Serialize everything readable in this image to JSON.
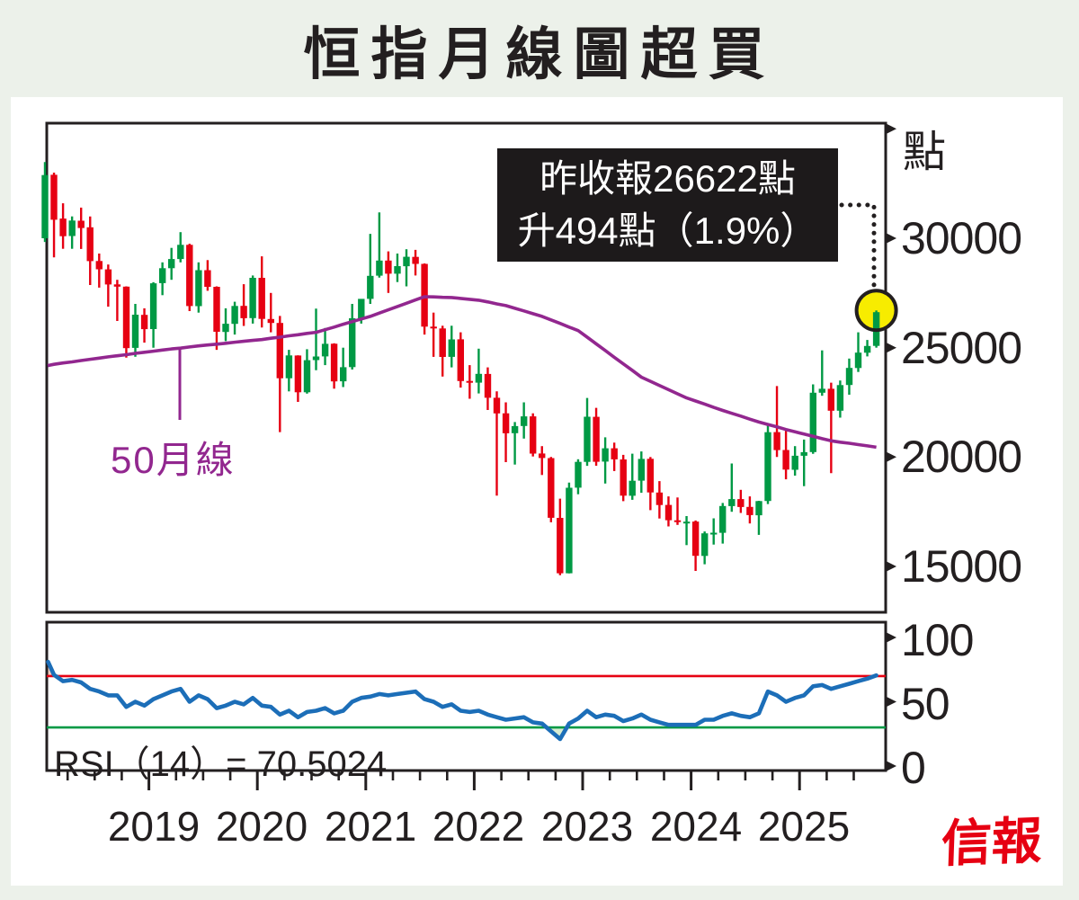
{
  "colors": {
    "background": "#ecf1ea",
    "ink": "#231f20",
    "up": "#009944",
    "down": "#e60012",
    "ma50": "#92278f",
    "rsi_line": "#1c6eb8",
    "overbought_line": "#e60012",
    "oversold_line": "#009944",
    "overbought_fill": "#f6cfc0",
    "oversold_fill": "#d9edd2",
    "highlight_circle": "#f7ec00",
    "logo_red": "#e60012",
    "note_bg": "#1d1a1b",
    "note_text": "#ffffff"
  },
  "brand": {
    "logo": "信報"
  },
  "chart_data": [
    {
      "type": "candlestick",
      "title": "恒指月線圖超買",
      "unit": "點",
      "ylim": [
        12900,
        35300
      ],
      "yticks": [
        15000,
        20000,
        25000,
        30000
      ],
      "x_years": [
        "2019",
        "2020",
        "2021",
        "2022",
        "2023",
        "2024",
        "2025"
      ],
      "highlight": {
        "month": "2025-09",
        "close": 26622,
        "change": 494,
        "change_pct": "1.9%",
        "note": [
          "昨收報26622點",
          "升494點（1.9%）"
        ]
      },
      "ma50": {
        "name": "50月線",
        "values": [
          24180,
          24240,
          24300,
          24350,
          24410,
          24470,
          24520,
          24580,
          24630,
          24680,
          24740,
          24790,
          24840,
          24890,
          24940,
          24980,
          25030,
          25080,
          25120,
          25160,
          25200,
          25250,
          25290,
          25330,
          25370,
          25430,
          25480,
          25540,
          25590,
          25650,
          25700,
          25820,
          25940,
          26070,
          26190,
          26310,
          26430,
          26580,
          26730,
          26880,
          27030,
          27180,
          27330,
          27320,
          27300,
          27290,
          27250,
          27210,
          27170,
          27090,
          27000,
          26920,
          26800,
          26680,
          26550,
          26430,
          26270,
          26110,
          25940,
          25780,
          25480,
          25170,
          24870,
          24560,
          24260,
          23960,
          23650,
          23460,
          23270,
          23080,
          22890,
          22700,
          22560,
          22420,
          22270,
          22130,
          22000,
          21870,
          21730,
          21600,
          21490,
          21380,
          21260,
          21150,
          21050,
          20950,
          20840,
          20740,
          20680,
          20630,
          20570,
          20510,
          20450
        ]
      },
      "candles": [
        [
          2018,
          1,
          30000,
          33484,
          29830,
          32887
        ],
        [
          2018,
          2,
          32900,
          33000,
          29129,
          30845
        ],
        [
          2018,
          3,
          30900,
          31600,
          29518,
          30093
        ],
        [
          2018,
          4,
          30100,
          31000,
          29519,
          30808
        ],
        [
          2018,
          5,
          30800,
          31400,
          29510,
          30469
        ],
        [
          2018,
          6,
          30500,
          31000,
          27863,
          28955
        ],
        [
          2018,
          7,
          28960,
          29300,
          27742,
          28583
        ],
        [
          2018,
          8,
          28580,
          28800,
          26871,
          27889
        ],
        [
          2018,
          9,
          27890,
          28100,
          26220,
          27789
        ],
        [
          2018,
          10,
          27790,
          27800,
          24541,
          24980
        ],
        [
          2018,
          11,
          24990,
          26999,
          24585,
          26507
        ],
        [
          2018,
          12,
          26500,
          26800,
          25227,
          25846
        ],
        [
          2019,
          1,
          25850,
          27990,
          25000,
          27942
        ],
        [
          2019,
          2,
          27950,
          28900,
          27400,
          28633
        ],
        [
          2019,
          3,
          28630,
          29562,
          28100,
          29051
        ],
        [
          2019,
          4,
          29050,
          30280,
          28900,
          29699
        ],
        [
          2019,
          5,
          29700,
          29750,
          26672,
          26901
        ],
        [
          2019,
          6,
          26900,
          28900,
          26600,
          28543
        ],
        [
          2019,
          7,
          28540,
          29000,
          27600,
          27778
        ],
        [
          2019,
          8,
          27780,
          27800,
          24899,
          25725
        ],
        [
          2019,
          9,
          25720,
          26800,
          25300,
          26092
        ],
        [
          2019,
          10,
          26090,
          27100,
          25600,
          26907
        ],
        [
          2019,
          11,
          26910,
          27900,
          25992,
          26346
        ],
        [
          2019,
          12,
          26350,
          28300,
          26100,
          28190
        ],
        [
          2020,
          1,
          28190,
          29175,
          25925,
          26313
        ],
        [
          2020,
          2,
          26310,
          27500,
          25700,
          26130
        ],
        [
          2020,
          3,
          26130,
          26450,
          21139,
          23603
        ],
        [
          2020,
          4,
          23600,
          24900,
          23000,
          24644
        ],
        [
          2020,
          5,
          24640,
          24650,
          22520,
          22961
        ],
        [
          2020,
          6,
          22960,
          24930,
          22900,
          24427
        ],
        [
          2020,
          7,
          24430,
          26782,
          23968,
          24595
        ],
        [
          2020,
          8,
          24600,
          25900,
          24200,
          25177
        ],
        [
          2020,
          9,
          25180,
          25200,
          23124,
          23459
        ],
        [
          2020,
          10,
          23460,
          25000,
          23200,
          24107
        ],
        [
          2020,
          11,
          24110,
          27000,
          24000,
          26341
        ],
        [
          2020,
          12,
          26340,
          27200,
          26100,
          27231
        ],
        [
          2021,
          1,
          27230,
          30200,
          27000,
          28284
        ],
        [
          2021,
          2,
          28290,
          31183,
          28200,
          28980
        ],
        [
          2021,
          3,
          28980,
          29400,
          27500,
          28378
        ],
        [
          2021,
          4,
          28380,
          29300,
          28000,
          28724
        ],
        [
          2021,
          5,
          28720,
          29500,
          27800,
          29152
        ],
        [
          2021,
          6,
          29150,
          29468,
          28300,
          28828
        ],
        [
          2021,
          7,
          28830,
          28850,
          25600,
          25961
        ],
        [
          2021,
          8,
          25960,
          26600,
          24581,
          25879
        ],
        [
          2021,
          9,
          25880,
          26000,
          23681,
          24576
        ],
        [
          2021,
          10,
          24580,
          26000,
          24100,
          25377
        ],
        [
          2021,
          11,
          25380,
          25700,
          23175,
          23475
        ],
        [
          2021,
          12,
          23480,
          24200,
          22665,
          23398
        ],
        [
          2022,
          1,
          23400,
          24953,
          22907,
          23802
        ],
        [
          2022,
          2,
          23800,
          24100,
          22151,
          22713
        ],
        [
          2022,
          3,
          22710,
          23000,
          18235,
          21996
        ],
        [
          2022,
          4,
          22000,
          22500,
          19769,
          21089
        ],
        [
          2022,
          5,
          21090,
          21600,
          19656,
          21415
        ],
        [
          2022,
          6,
          21420,
          22500,
          20845,
          21860
        ],
        [
          2022,
          7,
          21860,
          22000,
          20026,
          20157
        ],
        [
          2022,
          8,
          20160,
          20500,
          19180,
          19954
        ],
        [
          2022,
          9,
          19950,
          20000,
          17016,
          17223
        ],
        [
          2022,
          10,
          17220,
          18100,
          14597,
          14687
        ],
        [
          2022,
          11,
          14690,
          18830,
          14685,
          18597
        ],
        [
          2022,
          12,
          18600,
          19900,
          18300,
          19781
        ],
        [
          2023,
          1,
          19780,
          22700,
          19600,
          21842
        ],
        [
          2023,
          2,
          21840,
          22250,
          19604,
          19786
        ],
        [
          2023,
          3,
          19790,
          20900,
          18789,
          20400
        ],
        [
          2023,
          4,
          20400,
          20660,
          19362,
          19895
        ],
        [
          2023,
          5,
          19890,
          20100,
          17985,
          18234
        ],
        [
          2023,
          6,
          18230,
          20155,
          18044,
          18916
        ],
        [
          2023,
          7,
          18920,
          20255,
          18365,
          19916
        ],
        [
          2023,
          8,
          19920,
          20000,
          17573,
          18382
        ],
        [
          2023,
          9,
          18380,
          18900,
          17191,
          17810
        ],
        [
          2023,
          10,
          17810,
          18200,
          16830,
          17112
        ],
        [
          2023,
          11,
          17110,
          18150,
          16900,
          17042
        ],
        [
          2023,
          12,
          17040,
          17300,
          15972,
          17047
        ],
        [
          2024,
          1,
          17050,
          17100,
          14794,
          15485
        ],
        [
          2024,
          2,
          15480,
          16600,
          15100,
          16511
        ],
        [
          2024,
          3,
          16510,
          17200,
          16000,
          16541
        ],
        [
          2024,
          4,
          16540,
          17900,
          16044,
          17763
        ],
        [
          2024,
          5,
          17760,
          19706,
          17500,
          18080
        ],
        [
          2024,
          6,
          18080,
          18500,
          17444,
          17719
        ],
        [
          2024,
          7,
          17720,
          18200,
          16964,
          17345
        ],
        [
          2024,
          8,
          17340,
          18000,
          16441,
          17989
        ],
        [
          2024,
          9,
          17990,
          21500,
          17850,
          21134
        ],
        [
          2024,
          10,
          21140,
          23242,
          20000,
          20317
        ],
        [
          2024,
          11,
          20320,
          21300,
          18982,
          19424
        ],
        [
          2024,
          12,
          19420,
          20500,
          19150,
          20060
        ],
        [
          2025,
          1,
          20060,
          20800,
          18671,
          20225
        ],
        [
          2025,
          2,
          20230,
          23320,
          20150,
          22941
        ],
        [
          2025,
          3,
          22940,
          24874,
          22800,
          23120
        ],
        [
          2025,
          4,
          23120,
          23400,
          19260,
          22119
        ],
        [
          2025,
          5,
          22120,
          23500,
          21800,
          23290
        ],
        [
          2025,
          6,
          23290,
          24500,
          22850,
          24072
        ],
        [
          2025,
          7,
          24070,
          25700,
          23890,
          24773
        ],
        [
          2025,
          8,
          24770,
          25350,
          24600,
          25078
        ],
        [
          2025,
          9,
          25080,
          26700,
          25000,
          26622
        ]
      ]
    },
    {
      "type": "line",
      "name": "RSI",
      "period": 14,
      "label": "RSI（14）= 70.5024",
      "value": 70.5024,
      "ylim": [
        0,
        100
      ],
      "yticks": [
        0,
        50,
        100
      ],
      "levels": {
        "overbought": 70,
        "oversold": 30
      },
      "values": [
        81,
        71,
        66,
        67,
        65,
        60,
        58,
        55,
        55,
        46,
        50,
        47,
        52,
        55,
        58,
        60,
        50,
        55,
        52,
        45,
        47,
        50,
        48,
        53,
        47,
        46,
        40,
        43,
        38,
        42,
        43,
        45,
        41,
        43,
        50,
        53,
        54,
        56,
        55,
        56,
        57,
        58,
        52,
        50,
        46,
        48,
        43,
        42,
        43,
        40,
        38,
        36,
        37,
        38,
        34,
        33,
        27,
        21,
        33,
        37,
        43,
        38,
        40,
        39,
        35,
        37,
        40,
        36,
        34,
        32,
        32,
        32,
        32,
        36,
        36,
        39,
        41,
        39,
        38,
        41,
        58,
        55,
        50,
        53,
        55,
        62,
        63,
        60,
        62,
        64,
        66,
        68,
        70.5
      ]
    }
  ]
}
